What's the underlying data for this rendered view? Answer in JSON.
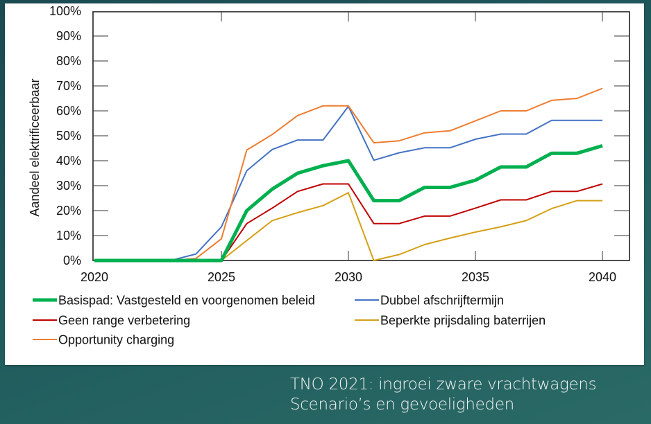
{
  "chart_data": {
    "type": "line",
    "title": "",
    "xlabel": "",
    "ylabel": "Aandeel elektrificeerbaar",
    "xlim": [
      2020,
      2040
    ],
    "ylim": [
      0,
      100
    ],
    "x_ticks": [
      2020,
      2025,
      2030,
      2035,
      2040
    ],
    "x_tick_labels": [
      "2020",
      "2025",
      "2030",
      "2035",
      "2040"
    ],
    "y_ticks": [
      0,
      10,
      20,
      30,
      40,
      50,
      60,
      70,
      80,
      90,
      100
    ],
    "y_tick_labels": [
      "0%",
      "10%",
      "20%",
      "30%",
      "40%",
      "50%",
      "60%",
      "70%",
      "80%",
      "90%",
      "100%"
    ],
    "grid": false,
    "legend_position": "bottom",
    "x": [
      2020,
      2021,
      2022,
      2023,
      2024,
      2025,
      2026,
      2027,
      2028,
      2029,
      2030,
      2031,
      2032,
      2033,
      2034,
      2035,
      2036,
      2037,
      2038,
      2039,
      2040
    ],
    "series": [
      {
        "name": "Basispad: Vastgesteld en voorgenomen beleid",
        "color": "#00b04f",
        "values": [
          0,
          0,
          0,
          0,
          0,
          0,
          20,
          28.6,
          35,
          38,
          40,
          24,
          24,
          29.3,
          29.3,
          32.2,
          37.5,
          37.5,
          43,
          43,
          46
        ]
      },
      {
        "name": "Dubbel afschrijftermijn",
        "color": "#4472c4",
        "values": [
          0,
          0,
          0,
          0,
          2.6,
          13.5,
          36,
          44.5,
          48.3,
          48.3,
          61.8,
          40.2,
          43.2,
          45.2,
          45.2,
          48.6,
          50.7,
          50.7,
          56.2,
          56.2,
          56.2
        ]
      },
      {
        "name": "Geen range verbetering",
        "color": "#c00000",
        "values": [
          0,
          0,
          0,
          0,
          0,
          0,
          14.8,
          21,
          27.7,
          30.7,
          30.7,
          14.8,
          14.8,
          17.8,
          17.8,
          21,
          24.3,
          24.3,
          27.7,
          27.7,
          30.7
        ]
      },
      {
        "name": "Beperkte prijsdaling baterrijen",
        "color": "#d4a017",
        "values": [
          0,
          0,
          0,
          0,
          0,
          0,
          8,
          16,
          19.2,
          22,
          27.2,
          0,
          2.4,
          6.4,
          9,
          11.4,
          13.5,
          16,
          20.8,
          24,
          24
        ]
      },
      {
        "name": "Opportunity charging",
        "color": "#ed7d31",
        "values": [
          0,
          0,
          0,
          0,
          0.8,
          8.7,
          44.3,
          50.5,
          58.1,
          62,
          62,
          47.2,
          48,
          51.2,
          52,
          56,
          60,
          60,
          64.2,
          65,
          69
        ]
      }
    ]
  },
  "caption": {
    "line1": "TNO 2021: ingroei zware vrachtwagens",
    "line2": "Scenario’s en gevoeligheden"
  }
}
